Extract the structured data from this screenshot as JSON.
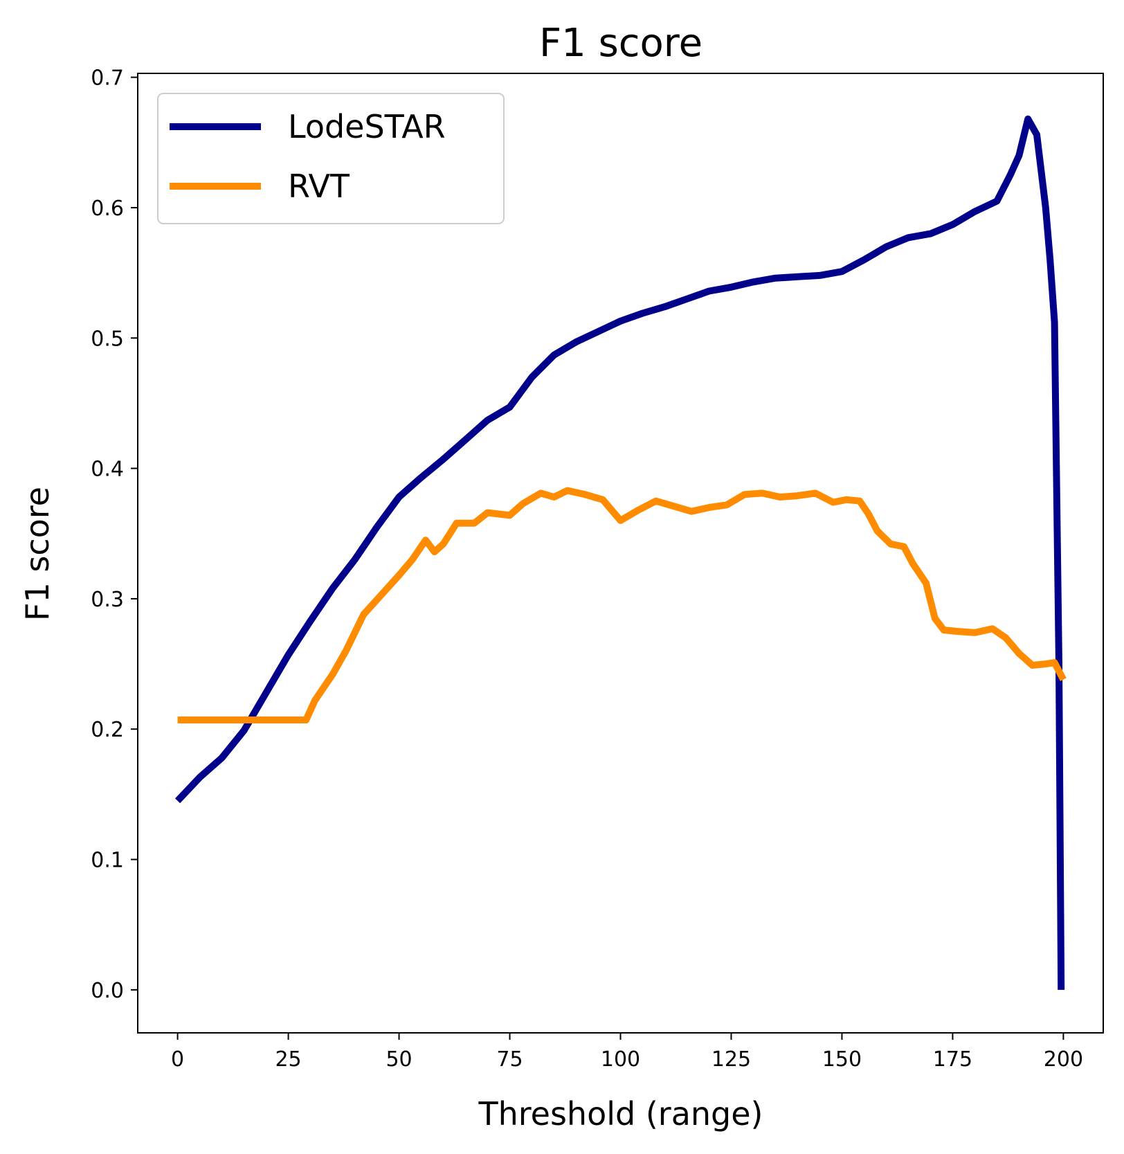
{
  "chart_data": {
    "type": "line",
    "title": "F1 score",
    "xlabel": "Threshold (range)",
    "ylabel": "F1 score",
    "xlim": [
      -9,
      209
    ],
    "ylim": [
      -0.033,
      0.703
    ],
    "xticks": [
      0,
      25,
      50,
      75,
      100,
      125,
      150,
      175,
      200
    ],
    "yticks": [
      "0.0",
      "0.1",
      "0.2",
      "0.3",
      "0.4",
      "0.5",
      "0.6",
      "0.7"
    ],
    "grid": false,
    "legend": "upper-left",
    "series": [
      {
        "name": "LodeSTAR",
        "color": "#00008B",
        "points": [
          [
            0,
            0.145
          ],
          [
            5,
            0.163
          ],
          [
            10,
            0.178
          ],
          [
            15,
            0.199
          ],
          [
            20,
            0.228
          ],
          [
            25,
            0.257
          ],
          [
            30,
            0.283
          ],
          [
            35,
            0.308
          ],
          [
            40,
            0.33
          ],
          [
            45,
            0.355
          ],
          [
            50,
            0.378
          ],
          [
            55,
            0.393
          ],
          [
            60,
            0.407
          ],
          [
            65,
            0.422
          ],
          [
            70,
            0.437
          ],
          [
            75,
            0.447
          ],
          [
            80,
            0.47
          ],
          [
            85,
            0.487
          ],
          [
            90,
            0.497
          ],
          [
            95,
            0.505
          ],
          [
            100,
            0.513
          ],
          [
            105,
            0.519
          ],
          [
            110,
            0.524
          ],
          [
            115,
            0.53
          ],
          [
            120,
            0.536
          ],
          [
            125,
            0.539
          ],
          [
            130,
            0.543
          ],
          [
            135,
            0.546
          ],
          [
            140,
            0.547
          ],
          [
            145,
            0.548
          ],
          [
            150,
            0.551
          ],
          [
            155,
            0.56
          ],
          [
            160,
            0.57
          ],
          [
            165,
            0.577
          ],
          [
            170,
            0.58
          ],
          [
            175,
            0.587
          ],
          [
            180,
            0.597
          ],
          [
            185,
            0.605
          ],
          [
            188,
            0.625
          ],
          [
            190,
            0.64
          ],
          [
            192,
            0.668
          ],
          [
            194,
            0.656
          ],
          [
            196,
            0.6
          ],
          [
            197,
            0.56
          ],
          [
            198,
            0.512
          ],
          [
            199,
            0.25
          ],
          [
            199.5,
            0.0
          ]
        ]
      },
      {
        "name": "RVT",
        "color": "#FF8C00",
        "points": [
          [
            0,
            0.207
          ],
          [
            29,
            0.207
          ],
          [
            31,
            0.222
          ],
          [
            35,
            0.242
          ],
          [
            38,
            0.26
          ],
          [
            42,
            0.288
          ],
          [
            46,
            0.303
          ],
          [
            50,
            0.318
          ],
          [
            53,
            0.33
          ],
          [
            56,
            0.345
          ],
          [
            58,
            0.336
          ],
          [
            60,
            0.342
          ],
          [
            63,
            0.358
          ],
          [
            67,
            0.358
          ],
          [
            70,
            0.366
          ],
          [
            75,
            0.364
          ],
          [
            78,
            0.373
          ],
          [
            82,
            0.381
          ],
          [
            85,
            0.378
          ],
          [
            88,
            0.383
          ],
          [
            92,
            0.38
          ],
          [
            96,
            0.376
          ],
          [
            100,
            0.36
          ],
          [
            104,
            0.368
          ],
          [
            108,
            0.375
          ],
          [
            112,
            0.371
          ],
          [
            116,
            0.367
          ],
          [
            120,
            0.37
          ],
          [
            124,
            0.372
          ],
          [
            128,
            0.38
          ],
          [
            132,
            0.381
          ],
          [
            136,
            0.378
          ],
          [
            140,
            0.379
          ],
          [
            144,
            0.381
          ],
          [
            148,
            0.374
          ],
          [
            151,
            0.376
          ],
          [
            154,
            0.375
          ],
          [
            156,
            0.365
          ],
          [
            158,
            0.352
          ],
          [
            161,
            0.342
          ],
          [
            164,
            0.34
          ],
          [
            166,
            0.327
          ],
          [
            169,
            0.312
          ],
          [
            171,
            0.285
          ],
          [
            173,
            0.276
          ],
          [
            176,
            0.275
          ],
          [
            180,
            0.274
          ],
          [
            184,
            0.277
          ],
          [
            187,
            0.27
          ],
          [
            190,
            0.258
          ],
          [
            193,
            0.249
          ],
          [
            196,
            0.25
          ],
          [
            198,
            0.251
          ],
          [
            200,
            0.238
          ]
        ]
      }
    ]
  }
}
